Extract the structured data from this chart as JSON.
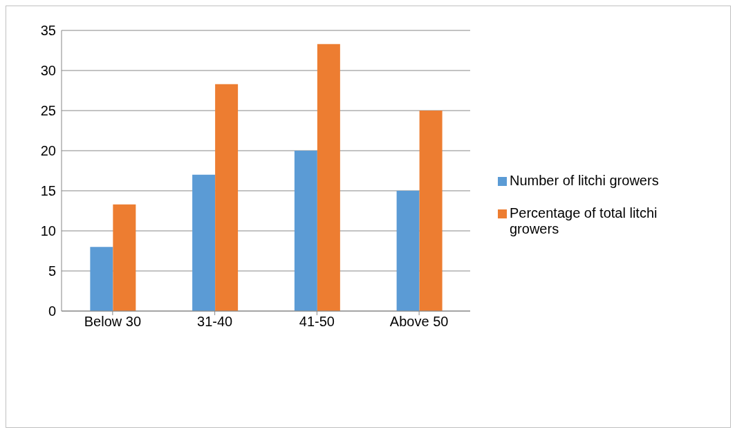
{
  "chart_data": {
    "type": "bar",
    "categories": [
      "Below 30",
      "31-40",
      "41-50",
      "Above 50"
    ],
    "series": [
      {
        "name": "Number of litchi growers",
        "color": "#5b9bd5",
        "values": [
          8,
          17,
          20,
          15
        ]
      },
      {
        "name": "Percentage of total litchi growers",
        "color": "#ed7d31",
        "values": [
          13.3,
          28.3,
          33.3,
          25
        ]
      }
    ],
    "ylim": [
      0,
      35
    ],
    "yticks": [
      0,
      5,
      10,
      15,
      20,
      25,
      30,
      35
    ],
    "grid": "y",
    "legend": "right"
  }
}
